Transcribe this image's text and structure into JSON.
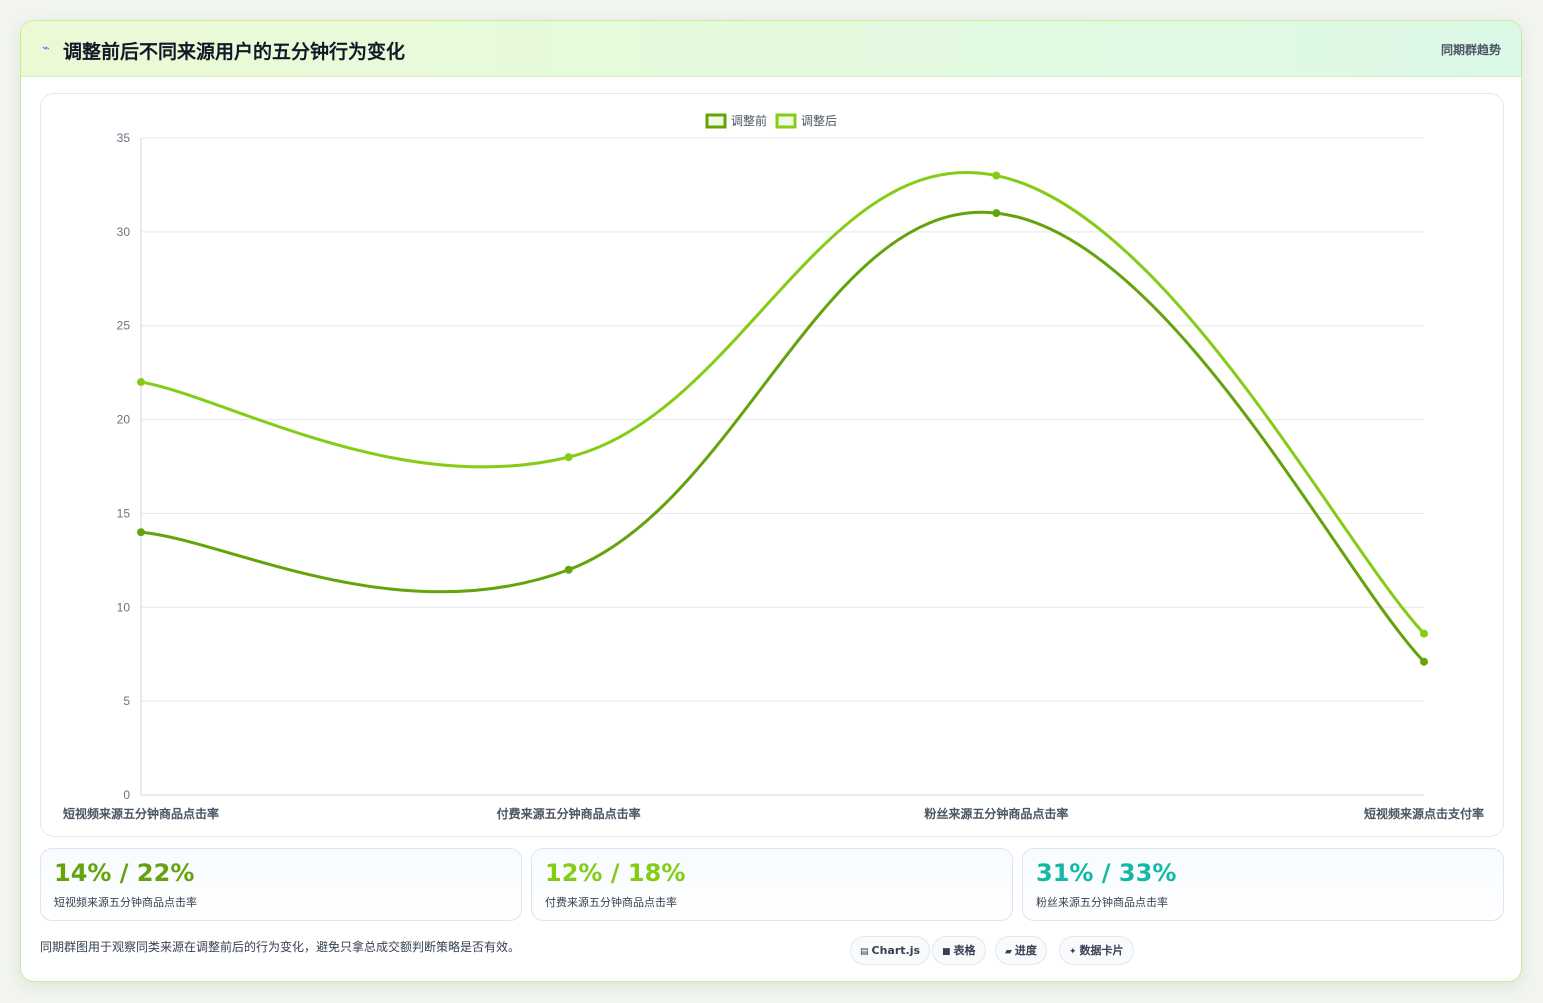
{
  "header": {
    "icon": "trend-icon",
    "title": "调整前后不同来源用户的五分钟行为变化",
    "tag": "同期群趋势"
  },
  "colors": {
    "before": "#65a30d",
    "after": "#84cc16",
    "teal": "#14b8a6"
  },
  "chart_data": {
    "type": "line",
    "categories": [
      "短视频来源五分钟商品点击率",
      "付费来源五分钟商品点击率",
      "粉丝来源五分钟商品点击率",
      "短视频来源点击支付率"
    ],
    "series": [
      {
        "name": "调整前",
        "values": [
          14,
          12,
          31,
          7.1
        ],
        "color": "#65a30d"
      },
      {
        "name": "调整后",
        "values": [
          22,
          18,
          33,
          8.6
        ],
        "color": "#84cc16"
      }
    ],
    "ylim": [
      0,
      35
    ],
    "yticks": [
      0,
      5,
      10,
      15,
      20,
      25,
      30,
      35
    ],
    "legend": "top-center",
    "grid": true,
    "smooth": true
  },
  "stats": [
    {
      "value": "14% / 22%",
      "label": "短视频来源五分钟商品点击率",
      "color": "#65a30d"
    },
    {
      "value": "12% / 18%",
      "label": "付费来源五分钟商品点击率",
      "color": "#84cc16"
    },
    {
      "value": "31% / 33%",
      "label": "粉丝来源五分钟商品点击率",
      "color": "#14b8a6"
    }
  ],
  "footer": {
    "note": "同期群图用于观察同类来源在调整前后的行为变化，避免只拿总成交额判断策略是否有效。",
    "chips": [
      {
        "icon": "chart-icon",
        "glyph": "▤",
        "label": "Chart.js"
      },
      {
        "icon": "table-icon",
        "glyph": "■",
        "label": "表格"
      },
      {
        "icon": "progress-icon",
        "glyph": "▰",
        "label": "进度"
      },
      {
        "icon": "sparkle-icon",
        "glyph": "✦",
        "label": "数据卡片"
      }
    ]
  }
}
